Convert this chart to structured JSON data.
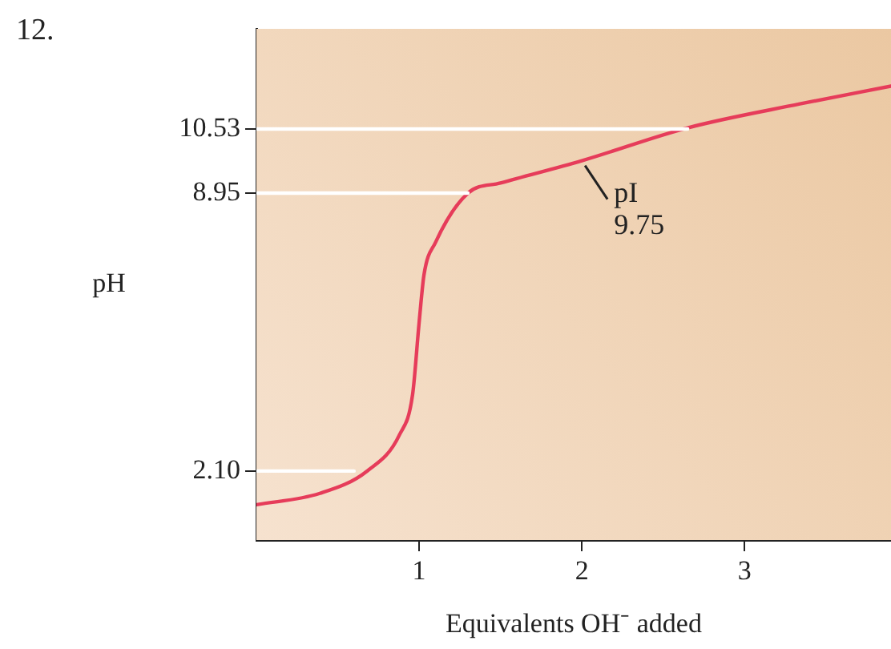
{
  "chart_data": {
    "type": "line",
    "xlabel": "Equivalents OH⁻ added",
    "ylabel": "pH",
    "xlim": [
      0,
      3.9
    ],
    "xticks": [
      1,
      2,
      3
    ],
    "ylim": [
      0.4,
      13
    ],
    "yticks": [
      {
        "value": 2.1,
        "label": "2.10"
      },
      8.95,
      10.53
    ],
    "legend": false,
    "marker": "none",
    "line_style": "solid",
    "series": [
      {
        "color": "#ffffff",
        "x": [
          0,
          0.6
        ],
        "values": [
          2.1,
          2.1
        ]
      },
      {
        "color": "#ffffff",
        "x": [
          0,
          1.3
        ],
        "values": [
          8.95,
          8.95
        ]
      },
      {
        "color": "#ffffff",
        "x": [
          0,
          2.65
        ],
        "values": [
          10.53,
          10.53
        ]
      },
      {
        "color": "#e63c5a",
        "x": [
          0,
          0.39,
          0.68,
          0.88,
          0.96,
          1.0,
          1.03,
          1.1,
          1.3,
          1.5,
          2.0,
          2.65,
          3.34,
          3.9
        ],
        "values": [
          1.27,
          1.55,
          2.1,
          3.0,
          3.99,
          5.76,
          6.94,
          7.73,
          8.95,
          9.2,
          9.75,
          10.56,
          11.15,
          11.59
        ]
      }
    ],
    "annotations": [
      "12.",
      {
        "text": "pI\n9.75",
        "x": 2.0,
        "y": 9.75
      }
    ]
  }
}
